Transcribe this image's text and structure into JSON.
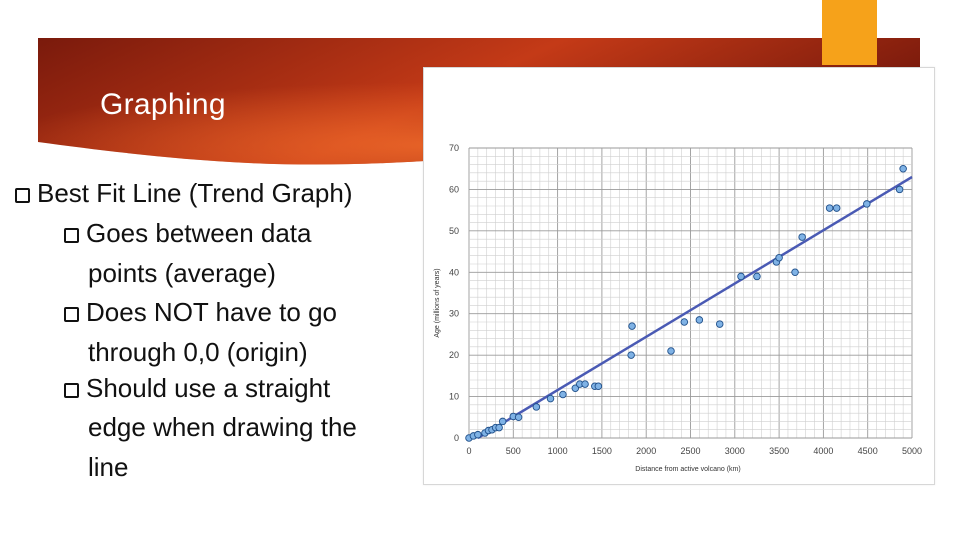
{
  "slide": {
    "title": "Graphing",
    "bullets": [
      {
        "text": "Best Fit Line (Trend Graph)"
      },
      {
        "text": "Goes between data",
        "continuation": "points (average)"
      },
      {
        "text": "Does NOT have to go",
        "continuation": "through 0,0 (origin)"
      },
      {
        "text": "Should use a straight",
        "continuation": "edge when drawing the",
        "continuation2": "line"
      }
    ],
    "colors": {
      "banner_dark": "#7a1a0c",
      "banner_light": "#e0501f",
      "orange_tab": "#f6a21a",
      "point": "#7fb2e5",
      "trend_line": "#4a5ab4"
    }
  },
  "chart_data": {
    "type": "scatter",
    "xlabel": "Distance from active volcano (km)",
    "ylabel": "Age (millions of years)",
    "xlim": [
      0,
      5000
    ],
    "ylim": [
      0,
      70
    ],
    "xticks": [
      0,
      500,
      1000,
      1500,
      2000,
      2500,
      3000,
      3500,
      4000,
      4500,
      5000
    ],
    "yticks": [
      0,
      10,
      20,
      30,
      40,
      50,
      60,
      70
    ],
    "grid": true,
    "points": [
      [
        0,
        0
      ],
      [
        50,
        0.5
      ],
      [
        100,
        0.8
      ],
      [
        180,
        1.2
      ],
      [
        220,
        1.8
      ],
      [
        260,
        2.0
      ],
      [
        300,
        2.5
      ],
      [
        340,
        2.5
      ],
      [
        380,
        4
      ],
      [
        500,
        5.2
      ],
      [
        560,
        5
      ],
      [
        760,
        7.5
      ],
      [
        920,
        9.5
      ],
      [
        1060,
        10.5
      ],
      [
        1200,
        12
      ],
      [
        1250,
        13
      ],
      [
        1310,
        13
      ],
      [
        1420,
        12.5
      ],
      [
        1460,
        12.5
      ],
      [
        1840,
        27
      ],
      [
        1830,
        20
      ],
      [
        2280,
        21
      ],
      [
        2430,
        28
      ],
      [
        2600,
        28.5
      ],
      [
        2830,
        27.5
      ],
      [
        3070,
        39
      ],
      [
        3250,
        39
      ],
      [
        3470,
        42.5
      ],
      [
        3500,
        43.5
      ],
      [
        3680,
        40
      ],
      [
        3760,
        48.5
      ],
      [
        4070,
        55.5
      ],
      [
        4150,
        55.5
      ],
      [
        4490,
        56.5
      ],
      [
        4860,
        60
      ],
      [
        4900,
        65
      ]
    ],
    "trend_line": {
      "x": [
        100,
        5000
      ],
      "y": [
        0,
        63
      ]
    }
  }
}
